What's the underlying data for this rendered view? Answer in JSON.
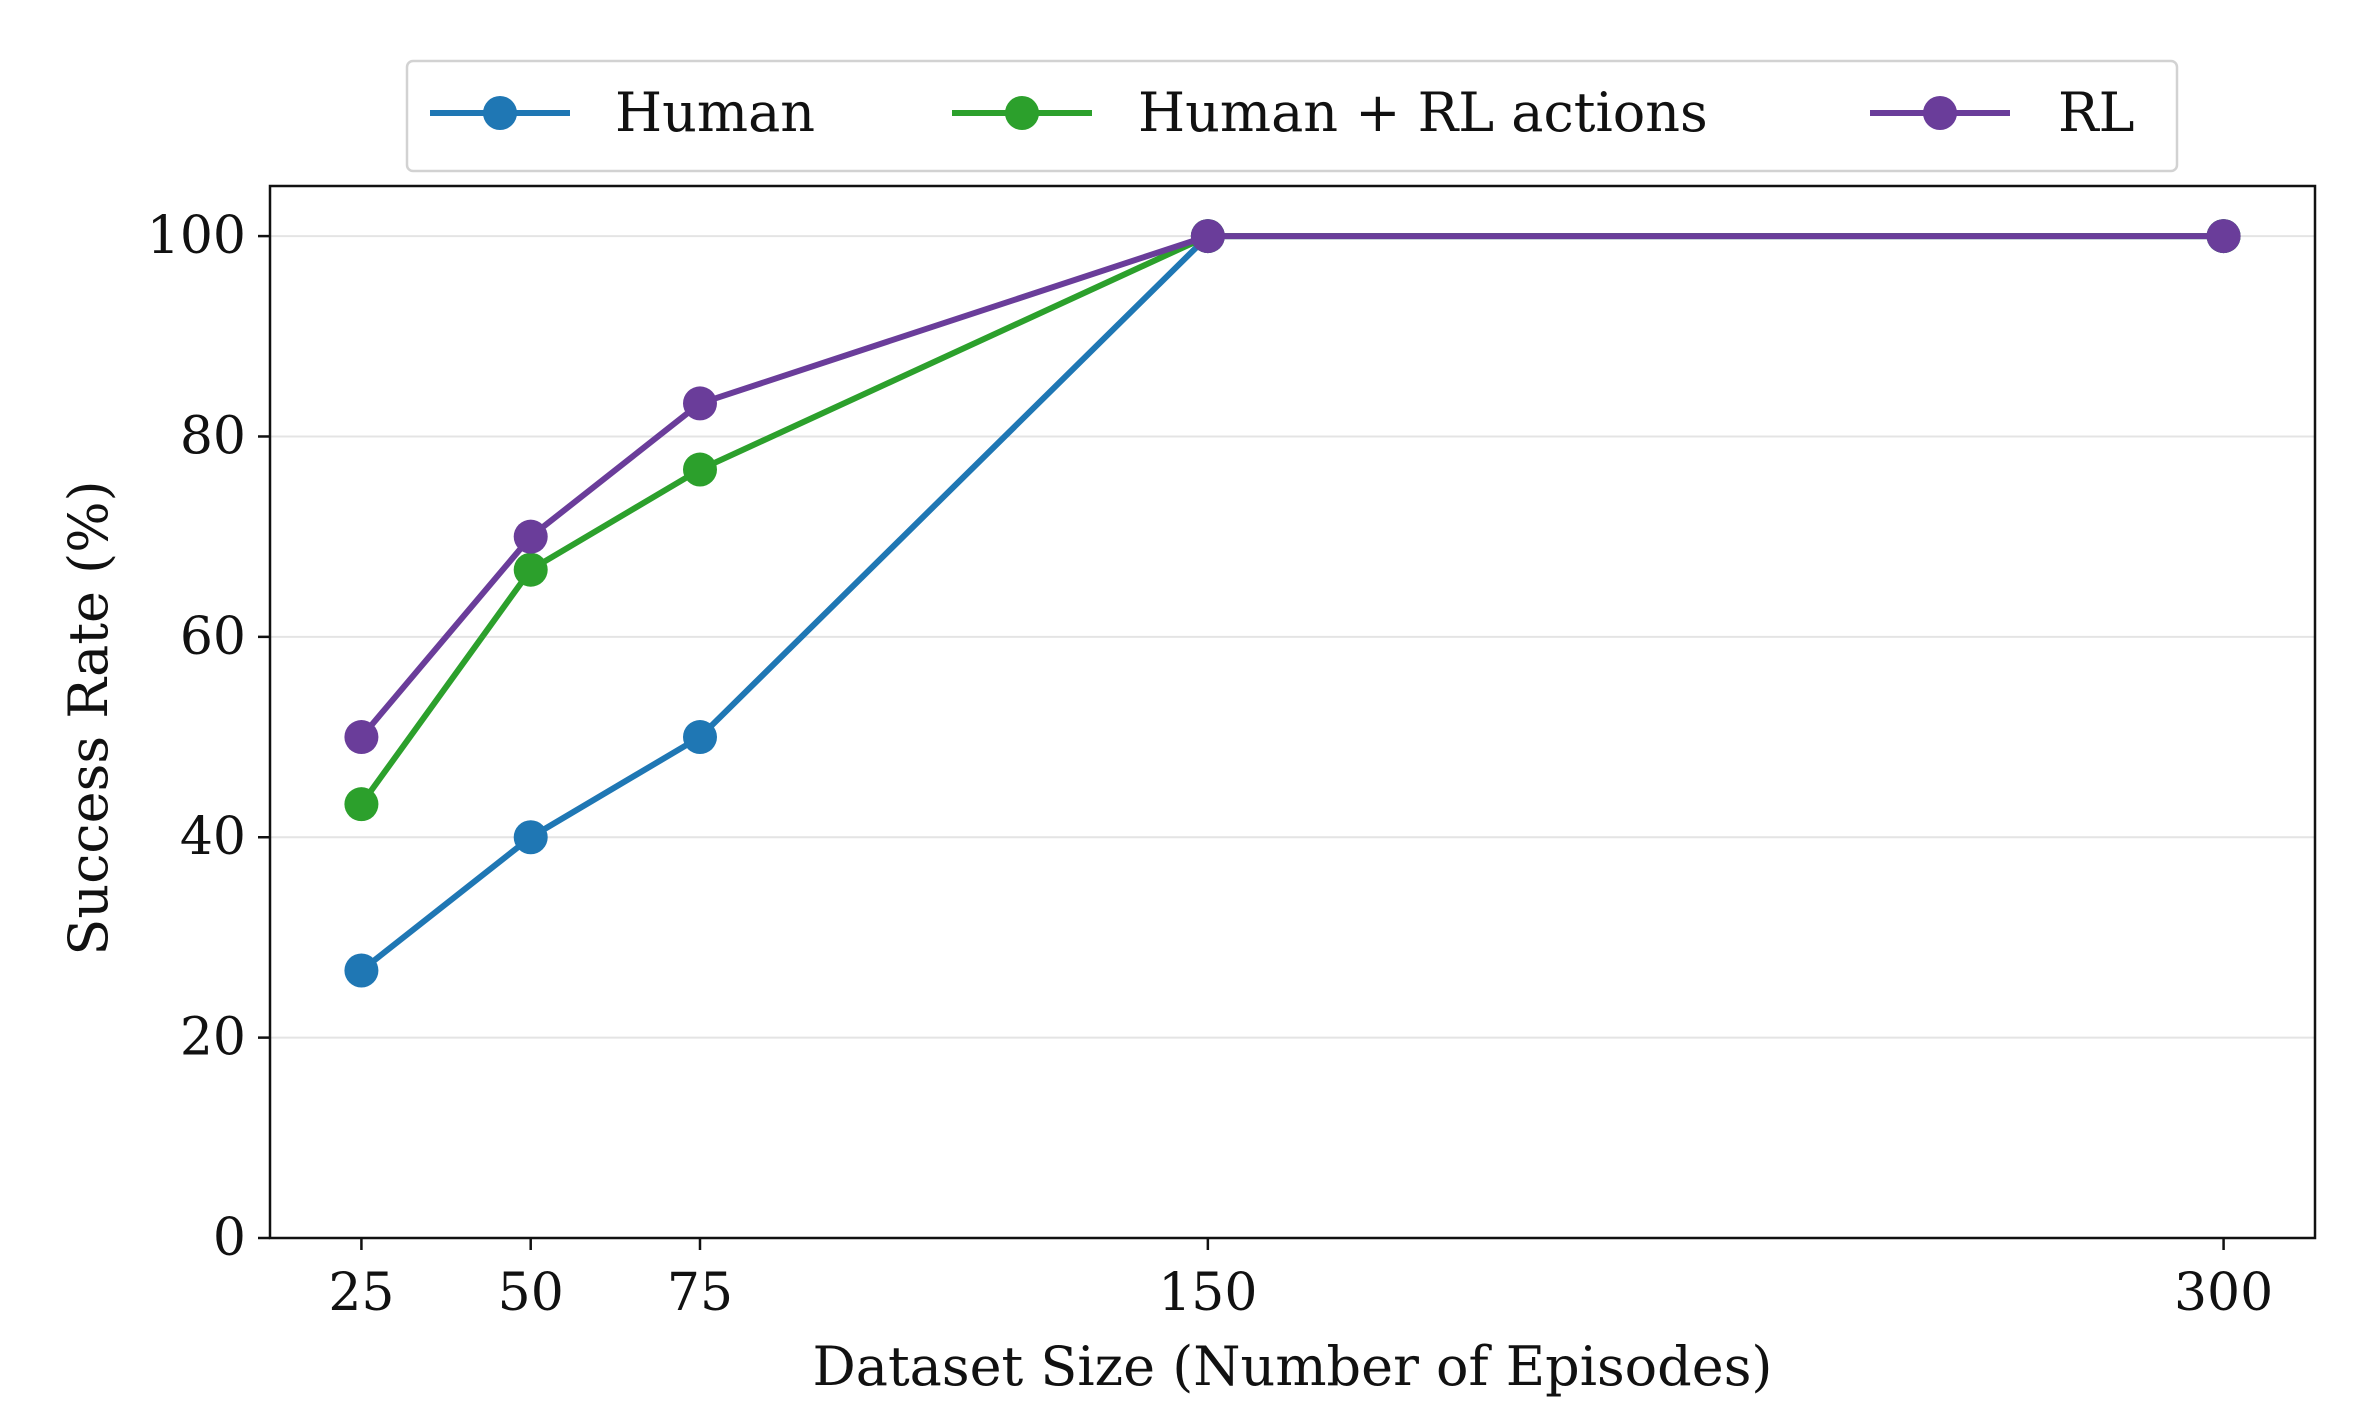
{
  "chart_data": {
    "type": "line",
    "title": "",
    "xlabel": "Dataset Size (Number of Episodes)",
    "ylabel": "Success Rate (%)",
    "x": [
      25,
      50,
      75,
      150,
      300
    ],
    "xticks": [
      "25",
      "50",
      "75",
      "150",
      "300"
    ],
    "xlim": [
      11.5,
      313.5
    ],
    "yticks": [
      "0",
      "20",
      "40",
      "60",
      "80",
      "100"
    ],
    "ylim": [
      0,
      105
    ],
    "grid": "horizontal",
    "legend_position": "top-center",
    "series": [
      {
        "name": "Human",
        "color": "#1f77b4",
        "values": [
          26.7,
          40,
          50,
          100,
          100
        ]
      },
      {
        "name": "Human + RL actions",
        "color": "#2ca02c",
        "values": [
          43.3,
          66.7,
          76.7,
          100,
          100
        ]
      },
      {
        "name": "RL",
        "color": "#6a3d9a",
        "values": [
          50,
          70,
          83.3,
          100,
          100
        ]
      }
    ]
  }
}
